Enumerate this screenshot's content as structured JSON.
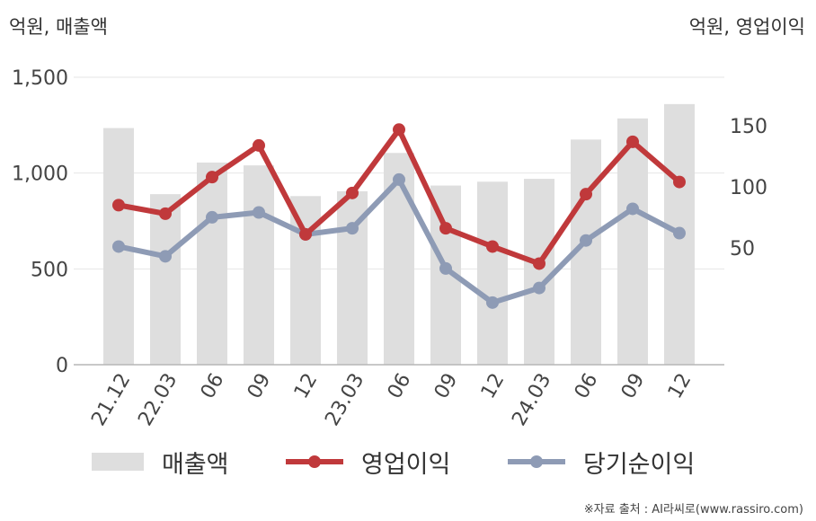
{
  "chart_data": {
    "type": "bar+line",
    "categories": [
      "21.12",
      "22.03",
      "06",
      "09",
      "12",
      "23.03",
      "06",
      "09",
      "12",
      "24.03",
      "06",
      "09",
      "12"
    ],
    "left_axis": {
      "unit": "억원, 매출액",
      "ticks": [
        0,
        500,
        1000,
        1500
      ],
      "tick_labels": [
        "0",
        "500",
        "1,000",
        "1,500"
      ],
      "range": [
        0,
        1500
      ]
    },
    "right_axis": {
      "unit": "억원, 영업이익",
      "ticks": [
        50,
        100,
        150
      ],
      "tick_labels": [
        "50",
        "100",
        "150"
      ],
      "range": [
        -46,
        190
      ]
    },
    "series": [
      {
        "name": "매출액",
        "kind": "bar",
        "axis": "left",
        "color": "#dedede",
        "values": [
          1235,
          890,
          1055,
          1040,
          880,
          905,
          1105,
          935,
          955,
          970,
          1175,
          1285,
          1360
        ]
      },
      {
        "name": "영업이익",
        "kind": "line",
        "axis": "right",
        "color": "#c0393b",
        "values": [
          85,
          78,
          108,
          134,
          61,
          95,
          147,
          66,
          51,
          37,
          94,
          137,
          104
        ]
      },
      {
        "name": "당기순이익",
        "kind": "line",
        "axis": "right",
        "color": "#8e9bb5",
        "values": [
          51,
          43,
          75,
          79,
          61,
          66,
          106,
          33,
          5,
          17,
          56,
          82,
          62
        ]
      }
    ],
    "grid": true,
    "legend": "bottom"
  },
  "source": "※자료 출처 : AI라씨로(www.rassiro.com)"
}
